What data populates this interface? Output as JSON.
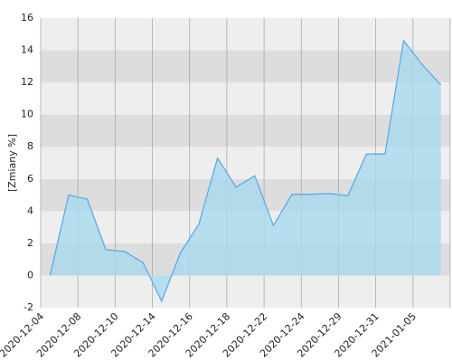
{
  "chart_data": {
    "type": "area",
    "y_label": "[Zmiany %]",
    "categories": [
      "2020-12-04",
      null,
      "2020-12-08",
      null,
      "2020-12-10",
      null,
      "2020-12-14",
      null,
      "2020-12-16",
      null,
      "2020-12-18",
      null,
      "2020-12-22",
      null,
      "2020-12-24",
      null,
      "2020-12-29",
      null,
      "2020-12-31",
      null,
      "2021-01-05",
      null
    ],
    "values": [
      0,
      5.0,
      4.75,
      1.6,
      1.5,
      0.8,
      -1.6,
      1.4,
      3.2,
      7.3,
      5.5,
      6.2,
      3.1,
      5.05,
      5.05,
      5.1,
      4.95,
      7.55,
      7.55,
      14.6,
      13.1,
      11.85
    ],
    "color": "#5aace4",
    "fill": "#a9d9ee",
    "ylim": [
      -2,
      16
    ],
    "yticks": [
      -2,
      0,
      2,
      4,
      6,
      8,
      10,
      12,
      14,
      16
    ],
    "grid": true
  }
}
